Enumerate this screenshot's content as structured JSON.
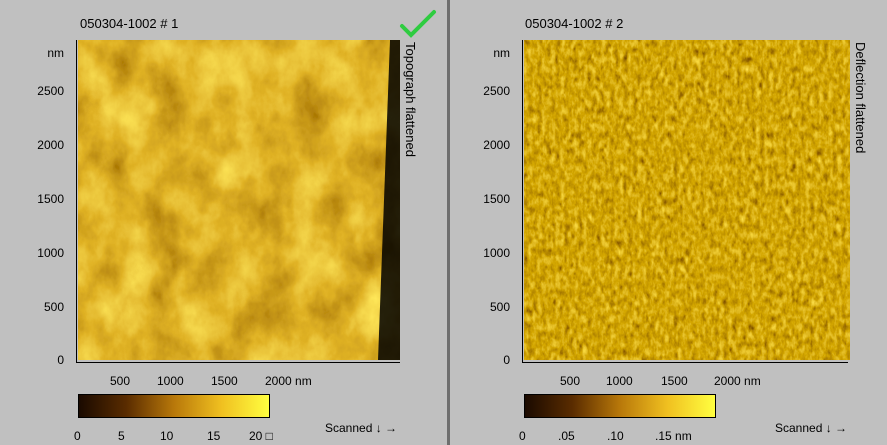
{
  "panels": [
    {
      "title": "050304-1002 # 1",
      "side_label": "Topograph  flattened",
      "y_unit": "nm",
      "y_ticks": [
        "2500",
        "2000",
        "1500",
        "1000",
        "500",
        "0"
      ],
      "x_ticks": [
        "500",
        "1000",
        "1500",
        "2000 nm"
      ],
      "colorbar_ticks": [
        "0",
        "5",
        "10",
        "15",
        "20 □"
      ],
      "scan_label": "Scanned ↓ →",
      "selected": true,
      "check_icon": "checkmark-icon",
      "check_color": "#2ecc40"
    },
    {
      "title": "050304-1002 # 2",
      "side_label": "Deflection  flattened",
      "y_unit": "nm",
      "y_ticks": [
        "2500",
        "2000",
        "1500",
        "1000",
        "500",
        "0"
      ],
      "x_ticks": [
        "500",
        "1000",
        "1500",
        "2000 nm"
      ],
      "colorbar_ticks": [
        "0",
        ".05",
        ".10",
        ".15 nm"
      ],
      "scan_label": "Scanned ↓ →",
      "selected": false
    }
  ],
  "colors": {
    "colormap_dark": "#1a0a00",
    "colormap_mid": "#b8780a",
    "colormap_light": "#ffff40",
    "panel_bg": "#c0c0c0",
    "separator": "#6e6e6e"
  }
}
